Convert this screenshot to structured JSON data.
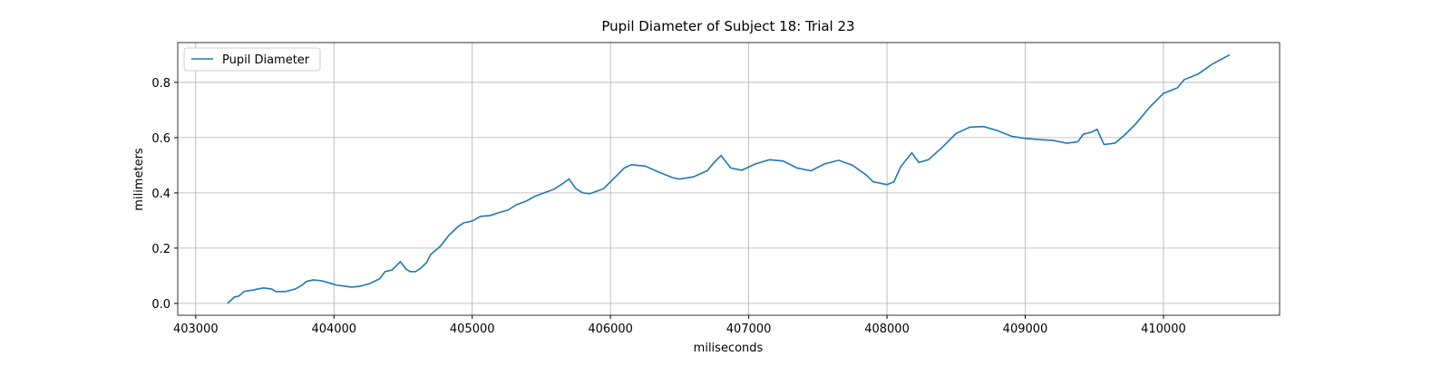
{
  "chart_data": {
    "type": "line",
    "title": "Pupil Diameter of Subject 18: Trial 23",
    "x_label": "miliseconds",
    "y_label": "milimeters",
    "x": [
      403230,
      403280,
      403310,
      403350,
      403420,
      403490,
      403550,
      403580,
      403650,
      403720,
      403770,
      403800,
      403850,
      403910,
      403980,
      404020,
      404080,
      404130,
      404190,
      404260,
      404330,
      404370,
      404420,
      404480,
      404520,
      404550,
      404590,
      404630,
      404670,
      404700,
      404770,
      404830,
      404900,
      404940,
      405000,
      405060,
      405130,
      405190,
      405260,
      405320,
      405390,
      405450,
      405520,
      405590,
      405650,
      405700,
      405750,
      405800,
      405850,
      405950,
      406000,
      406100,
      406150,
      406250,
      406350,
      406450,
      406500,
      406600,
      406700,
      406750,
      406800,
      406870,
      406950,
      407050,
      407150,
      407250,
      407350,
      407450,
      407550,
      407650,
      407750,
      407850,
      407900,
      408000,
      408050,
      408100,
      408180,
      408230,
      408300,
      408400,
      408500,
      408600,
      408700,
      408800,
      408900,
      409000,
      409100,
      409200,
      409300,
      409380,
      409420,
      409480,
      409520,
      409570,
      409650,
      409720,
      409800,
      409900,
      410000,
      410100,
      410150,
      410250,
      410350,
      410480
    ],
    "series": [
      {
        "name": "Pupil Diameter",
        "color": "#1f77b4",
        "values": [
          0,
          0.023,
          0.026,
          0.043,
          0.049,
          0.056,
          0.052,
          0.043,
          0.043,
          0.052,
          0.066,
          0.079,
          0.085,
          0.082,
          0.072,
          0.066,
          0.062,
          0.059,
          0.062,
          0.072,
          0.089,
          0.115,
          0.121,
          0.151,
          0.125,
          0.115,
          0.115,
          0.128,
          0.148,
          0.177,
          0.207,
          0.246,
          0.279,
          0.292,
          0.298,
          0.315,
          0.318,
          0.328,
          0.338,
          0.357,
          0.37,
          0.387,
          0.4,
          0.413,
          0.432,
          0.45,
          0.415,
          0.4,
          0.397,
          0.415,
          0.44,
          0.49,
          0.502,
          0.497,
          0.475,
          0.455,
          0.45,
          0.458,
          0.48,
          0.51,
          0.535,
          0.49,
          0.482,
          0.505,
          0.52,
          0.515,
          0.49,
          0.48,
          0.505,
          0.518,
          0.5,
          0.465,
          0.44,
          0.43,
          0.44,
          0.495,
          0.545,
          0.51,
          0.52,
          0.565,
          0.615,
          0.638,
          0.64,
          0.625,
          0.605,
          0.597,
          0.593,
          0.59,
          0.58,
          0.585,
          0.612,
          0.62,
          0.63,
          0.575,
          0.58,
          0.61,
          0.65,
          0.71,
          0.76,
          0.78,
          0.81,
          0.83,
          0.865,
          0.9
        ]
      }
    ],
    "xlim": [
      402870,
      410840
    ],
    "ylim": [
      -0.043,
      0.944
    ],
    "xticks": [
      403000,
      404000,
      405000,
      406000,
      407000,
      408000,
      409000,
      410000
    ],
    "yticks": [
      {
        "value": 0,
        "label": "0.0"
      },
      0.2,
      0.4,
      0.6,
      0.8
    ],
    "grid": true,
    "legend": "upper-left"
  }
}
